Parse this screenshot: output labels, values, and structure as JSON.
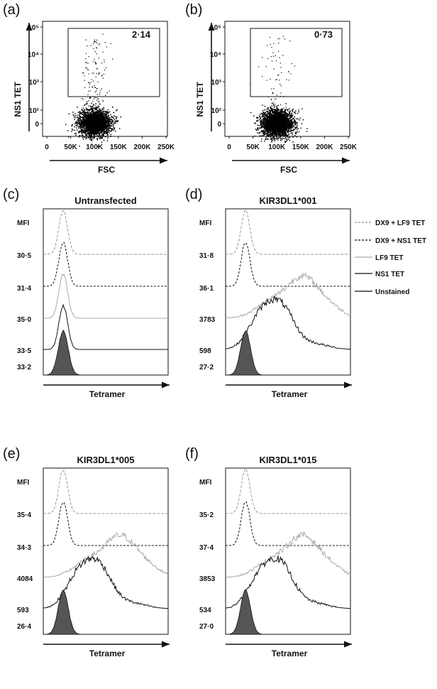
{
  "chart_data": [
    {
      "type": "scatter",
      "panel": "(a)",
      "xlabel": "FSC",
      "ylabel": "NS1 TET",
      "x_ticks": [
        "0",
        "50K",
        "100K",
        "150K",
        "200K",
        "250K"
      ],
      "y_ticks": [
        "0",
        "10²",
        "10³",
        "10⁴",
        "10⁵"
      ],
      "gate_value": "2·14",
      "population": {
        "center_fsc": 100000,
        "spread_fsc": 25000,
        "main_cluster_ceiling_log": 2.4,
        "gated_events_fraction": 0.0214
      }
    },
    {
      "type": "scatter",
      "panel": "(b)",
      "xlabel": "FSC",
      "ylabel": "NS1 TET",
      "x_ticks": [
        "0",
        "50K",
        "100K",
        "150K",
        "200K",
        "250K"
      ],
      "y_ticks": [
        "0",
        "10²",
        "10³",
        "10⁴",
        "10⁵"
      ],
      "gate_value": "0·73",
      "population": {
        "center_fsc": 100000,
        "spread_fsc": 25000,
        "main_cluster_ceiling_log": 2.4,
        "gated_events_fraction": 0.0073
      }
    },
    {
      "type": "area",
      "panel": "(c)",
      "title": "Untransfected",
      "xlabel": "Tetramer",
      "mfi_header": "MFI",
      "series": [
        {
          "name": "DX9 + LF9 TET",
          "mfi": "30·5",
          "peak": 0.12
        },
        {
          "name": "DX9 + NS1 TET",
          "mfi": "31·4",
          "peak": 0.12
        },
        {
          "name": "LF9 TET",
          "mfi": "35·0",
          "peak": 0.12
        },
        {
          "name": "NS1 TET",
          "mfi": "33·5",
          "peak": 0.12
        },
        {
          "name": "Unstained",
          "mfi": "33·2",
          "peak": 0.12
        }
      ]
    },
    {
      "type": "area",
      "panel": "(d)",
      "title": "KIR3DL1*001",
      "xlabel": "Tetramer",
      "mfi_header": "MFI",
      "series": [
        {
          "name": "DX9 + LF9 TET",
          "mfi": "31·8"
        },
        {
          "name": "DX9 + NS1 TET",
          "mfi": "36·1"
        },
        {
          "name": "LF9 TET",
          "mfi": "3783"
        },
        {
          "name": "NS1 TET",
          "mfi": "598"
        },
        {
          "name": "Unstained",
          "mfi": "27·2"
        }
      ]
    },
    {
      "type": "area",
      "panel": "(e)",
      "title": "KIR3DL1*005",
      "xlabel": "Tetramer",
      "mfi_header": "MFI",
      "series": [
        {
          "name": "DX9 + LF9 TET",
          "mfi": "35·4"
        },
        {
          "name": "DX9 + NS1 TET",
          "mfi": "34·3"
        },
        {
          "name": "LF9 TET",
          "mfi": "4084"
        },
        {
          "name": "NS1 TET",
          "mfi": "593"
        },
        {
          "name": "Unstained",
          "mfi": "26·4"
        }
      ]
    },
    {
      "type": "area",
      "panel": "(f)",
      "title": "KIR3DL1*015",
      "xlabel": "Tetramer",
      "mfi_header": "MFI",
      "series": [
        {
          "name": "DX9 + LF9 TET",
          "mfi": "35·2"
        },
        {
          "name": "DX9 + NS1 TET",
          "mfi": "37·4"
        },
        {
          "name": "LF9 TET",
          "mfi": "3853"
        },
        {
          "name": "NS1 TET",
          "mfi": "534"
        },
        {
          "name": "Unstained",
          "mfi": "27·0"
        }
      ]
    }
  ],
  "legend": {
    "placement": "right of panel (d)",
    "items": [
      {
        "label": "DX9 + LF9 TET",
        "style": "dashed",
        "color": "#9a9a9a"
      },
      {
        "label": "DX9 + NS1 TET",
        "style": "dashed",
        "color": "#111111"
      },
      {
        "label": "LF9 TET",
        "style": "solid",
        "color": "#a8a8a8"
      },
      {
        "label": "NS1 TET",
        "style": "solid",
        "color": "#111111"
      },
      {
        "label": "Unstained",
        "style": "solid",
        "color": "#111111"
      }
    ]
  },
  "colors": {
    "dx9_lf9": "#9a9a9a",
    "dx9_ns1": "#111111",
    "lf9": "#a8a8a8",
    "ns1": "#111111",
    "unstained_fill": "#555555",
    "dots": "#000000"
  }
}
